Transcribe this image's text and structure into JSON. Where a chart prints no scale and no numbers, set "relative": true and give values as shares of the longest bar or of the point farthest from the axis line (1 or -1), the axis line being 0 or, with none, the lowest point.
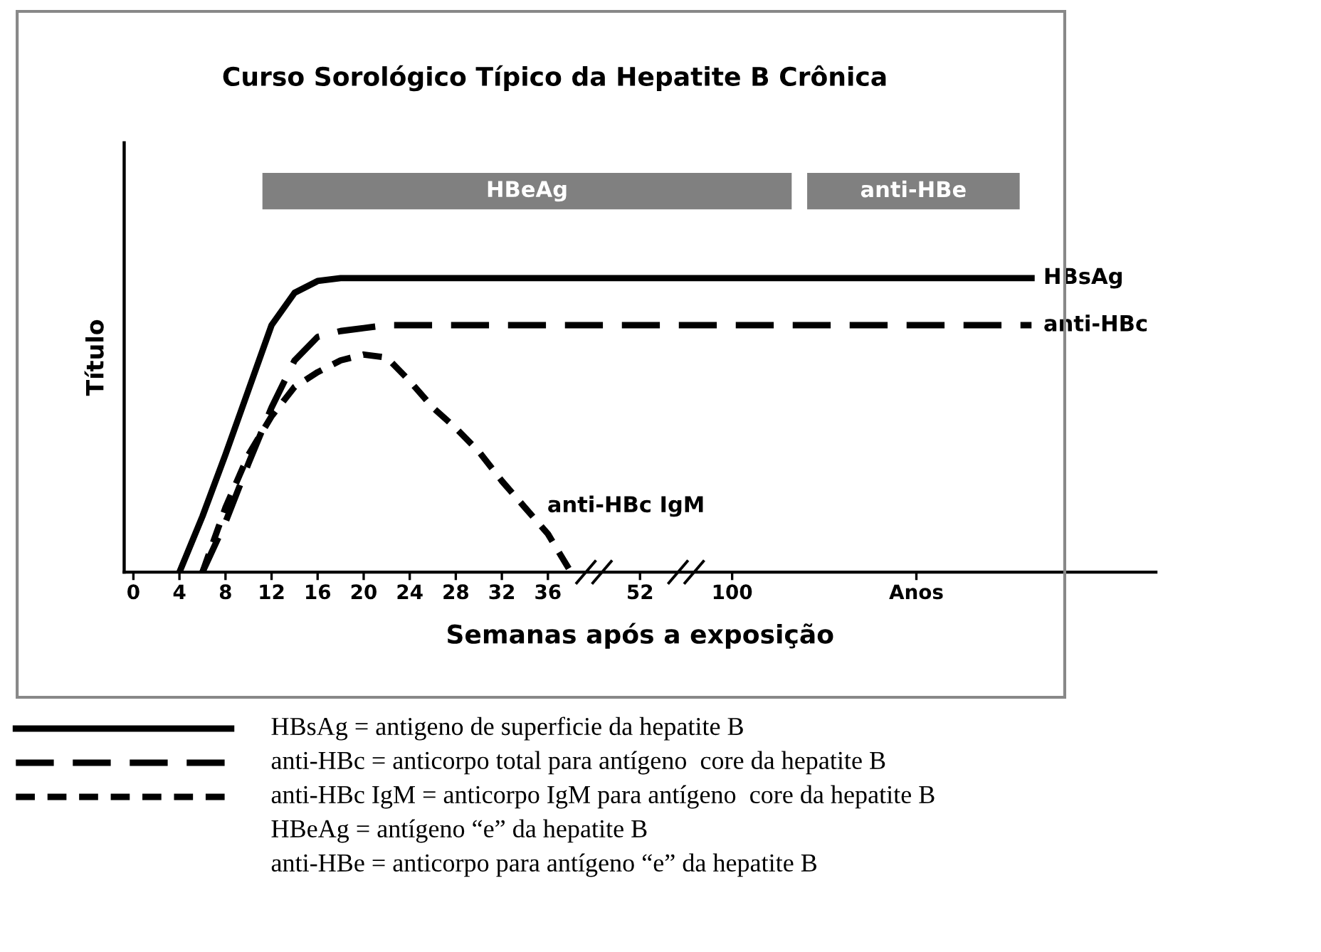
{
  "chart_data": {
    "type": "line",
    "title": "Curso Sorológico Típico da Hepatite B Crônica",
    "xlabel": "Semanas após a exposição",
    "ylabel": "Título",
    "relative": true,
    "categories": [
      "0",
      null,
      "4",
      null,
      "8",
      null,
      "12",
      null,
      "16",
      null,
      "20",
      null,
      "24",
      null,
      "28",
      null,
      "32",
      null,
      "36",
      null,
      null,
      null,
      "52",
      null,
      null,
      null,
      "100",
      null,
      null,
      null,
      null,
      null,
      null,
      null,
      "Anos",
      null,
      null,
      null,
      null,
      null,
      null,
      null,
      null,
      null,
      null
    ],
    "series": [
      {
        "name": "HBsAg",
        "color": "#000000",
        "line_style": "solid",
        "values": [
          null,
          null,
          0,
          0.19,
          0.4,
          0.62,
          0.84,
          0.95,
          0.99,
          1,
          1,
          1,
          1,
          1,
          1,
          1,
          1,
          1,
          1,
          1,
          1,
          1,
          1,
          1,
          1,
          1,
          1,
          1,
          1,
          1,
          1,
          1,
          1,
          1,
          1,
          1,
          1,
          1,
          1,
          1,
          null,
          null,
          null,
          null,
          null
        ]
      },
      {
        "name": "anti-HBc",
        "color": "#000000",
        "line_style": "dashed",
        "values": [
          null,
          null,
          null,
          0,
          0.17,
          0.37,
          0.56,
          0.72,
          0.8,
          0.82,
          0.83,
          0.84,
          0.84,
          0.84,
          0.84,
          0.84,
          0.84,
          0.84,
          0.84,
          0.84,
          0.84,
          0.84,
          0.84,
          0.84,
          0.84,
          0.84,
          0.84,
          0.84,
          0.84,
          0.84,
          0.84,
          0.84,
          0.84,
          0.84,
          0.84,
          0.84,
          0.84,
          0.84,
          0.84,
          0.84,
          null,
          null,
          null,
          null,
          null
        ]
      },
      {
        "name": "anti-HBc IgM",
        "color": "#000000",
        "line_style": "dotted",
        "values": [
          null,
          null,
          null,
          0,
          0.22,
          0.4,
          0.53,
          0.63,
          0.68,
          0.72,
          0.74,
          0.73,
          0.65,
          0.56,
          0.49,
          0.41,
          0.31,
          0.22,
          0.13,
          0,
          null,
          null,
          null,
          null,
          null,
          null,
          null,
          null,
          null,
          null,
          null,
          null,
          null,
          null,
          null,
          null,
          null,
          null,
          null,
          null,
          null,
          null,
          null,
          null,
          null
        ]
      }
    ],
    "annotations": [
      "HBeAg",
      "anti-HBe",
      "HBsAg = antigeno de superficie da hepatite B",
      "anti-HBc = anticorpo total para antígeno  core da hepatite B",
      "anti-HBc IgM = anticorpo IgM para antígeno  core da hepatite B",
      "HBeAg = antígeno “e” da hepatite B",
      "anti-HBe = anticorpo para antígeno “e” da hepatite B"
    ]
  }
}
